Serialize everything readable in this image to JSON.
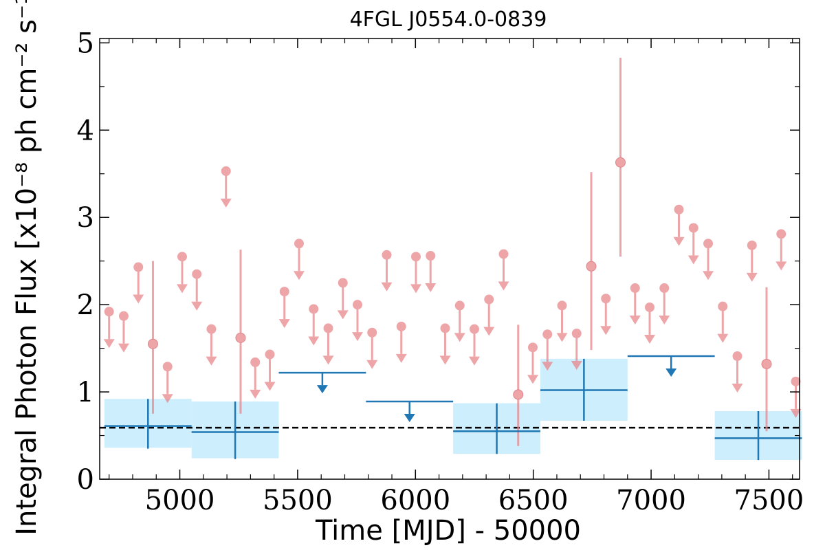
{
  "chart_data": {
    "type": "scatter",
    "title": "4FGL J0554.0-0839",
    "xlabel": "Time [MJD] - 50000",
    "ylabel": "Integral Photon Flux [x10⁻⁸ ph cm⁻² s⁻¹]",
    "xlim": [
      4660,
      7630
    ],
    "ylim": [
      0,
      5.05
    ],
    "x_ticks": [
      5000,
      5500,
      6000,
      6500,
      7000,
      7500
    ],
    "x_tick_labels": [
      "5000",
      "5500",
      "6000",
      "6500",
      "7000",
      "7500"
    ],
    "y_ticks": [
      0,
      1,
      2,
      3,
      4,
      5
    ],
    "y_tick_labels": [
      "0",
      "1",
      "2",
      "3",
      "4",
      "5"
    ],
    "grid": false,
    "reference_level": 0.59,
    "colors": {
      "short_bins": "#e8878c",
      "long_bins": "#1f77b4",
      "band": "#cdeefc",
      "reference": "#000000"
    },
    "short_bins": {
      "upper_limits": [
        {
          "x": 4700,
          "y": 1.92
        },
        {
          "x": 4762,
          "y": 1.87
        },
        {
          "x": 4824,
          "y": 2.43
        },
        {
          "x": 4948,
          "y": 1.29
        },
        {
          "x": 5010,
          "y": 2.55
        },
        {
          "x": 5072,
          "y": 2.35
        },
        {
          "x": 5134,
          "y": 1.72
        },
        {
          "x": 5196,
          "y": 3.53
        },
        {
          "x": 5320,
          "y": 1.34
        },
        {
          "x": 5382,
          "y": 1.43
        },
        {
          "x": 5444,
          "y": 2.15
        },
        {
          "x": 5506,
          "y": 2.7
        },
        {
          "x": 5568,
          "y": 1.95
        },
        {
          "x": 5630,
          "y": 1.73
        },
        {
          "x": 5692,
          "y": 2.25
        },
        {
          "x": 5754,
          "y": 2.0
        },
        {
          "x": 5816,
          "y": 1.68
        },
        {
          "x": 5878,
          "y": 2.57
        },
        {
          "x": 5940,
          "y": 1.75
        },
        {
          "x": 6002,
          "y": 2.55
        },
        {
          "x": 6064,
          "y": 2.56
        },
        {
          "x": 6126,
          "y": 1.73
        },
        {
          "x": 6188,
          "y": 1.99
        },
        {
          "x": 6250,
          "y": 1.72
        },
        {
          "x": 6312,
          "y": 2.06
        },
        {
          "x": 6374,
          "y": 2.58
        },
        {
          "x": 6498,
          "y": 1.51
        },
        {
          "x": 6560,
          "y": 1.66
        },
        {
          "x": 6622,
          "y": 1.99
        },
        {
          "x": 6684,
          "y": 1.67
        },
        {
          "x": 6808,
          "y": 2.07
        },
        {
          "x": 6932,
          "y": 2.19
        },
        {
          "x": 6994,
          "y": 1.97
        },
        {
          "x": 7056,
          "y": 2.19
        },
        {
          "x": 7118,
          "y": 3.09
        },
        {
          "x": 7180,
          "y": 2.88
        },
        {
          "x": 7242,
          "y": 2.7
        },
        {
          "x": 7304,
          "y": 1.98
        },
        {
          "x": 7366,
          "y": 1.41
        },
        {
          "x": 7428,
          "y": 2.68
        },
        {
          "x": 7552,
          "y": 2.81
        },
        {
          "x": 7614,
          "y": 1.12
        }
      ],
      "detections": [
        {
          "x": 4886,
          "y": 1.55,
          "y_low": 0.75,
          "y_high": 2.5
        },
        {
          "x": 5258,
          "y": 1.62,
          "y_low": 0.75,
          "y_high": 2.63
        },
        {
          "x": 6436,
          "y": 0.97,
          "y_low": 0.38,
          "y_high": 1.77
        },
        {
          "x": 6746,
          "y": 2.44,
          "y_low": 1.48,
          "y_high": 3.52
        },
        {
          "x": 6870,
          "y": 3.63,
          "y_low": 2.55,
          "y_high": 4.83
        },
        {
          "x": 7490,
          "y": 1.32,
          "y_low": 0.55,
          "y_high": 2.2
        }
      ]
    },
    "long_bins": {
      "detections": [
        {
          "x_low": 4680,
          "x_high": 5050,
          "y": 0.61,
          "y_low": 0.35,
          "y_high": 0.92,
          "band_low": 0.36,
          "band_high": 0.92
        },
        {
          "x_low": 5050,
          "x_high": 5420,
          "y": 0.54,
          "y_low": 0.23,
          "y_high": 0.89,
          "band_low": 0.24,
          "band_high": 0.89
        },
        {
          "x_low": 6160,
          "x_high": 6530,
          "y": 0.55,
          "y_low": 0.29,
          "y_high": 0.87,
          "band_low": 0.29,
          "band_high": 0.87
        },
        {
          "x_low": 6530,
          "x_high": 6900,
          "y": 1.02,
          "y_low": 0.67,
          "y_high": 1.38,
          "band_low": 0.67,
          "band_high": 1.38
        },
        {
          "x_low": 7270,
          "x_high": 7640,
          "y": 0.47,
          "y_low": 0.22,
          "y_high": 0.78,
          "band_low": 0.22,
          "band_high": 0.78
        }
      ],
      "upper_limits": [
        {
          "x_low": 5420,
          "x_high": 5790,
          "y": 1.22
        },
        {
          "x_low": 5790,
          "x_high": 6160,
          "y": 0.89
        },
        {
          "x_low": 6900,
          "x_high": 7270,
          "y": 1.41
        }
      ]
    }
  }
}
